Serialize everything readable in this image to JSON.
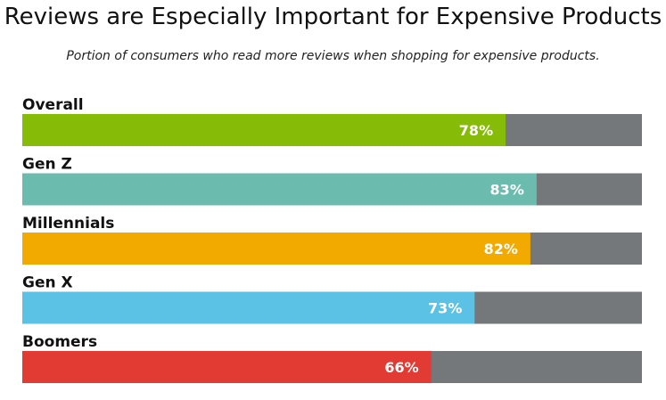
{
  "chart_data": {
    "type": "bar",
    "orientation": "horizontal",
    "stacked_remainder": true,
    "title": "Reviews are Especially Important for Expensive Products",
    "subtitle": "Portion of consumers who read more reviews when shopping for expensive products.",
    "categories": [
      "Overall",
      "Gen Z",
      "Millennials",
      "Gen X",
      "Boomers"
    ],
    "values": [
      78,
      83,
      82,
      73,
      66
    ],
    "value_labels": [
      "78%",
      "83%",
      "82%",
      "73%",
      "66%"
    ],
    "xlim": [
      0,
      100
    ],
    "grid": false,
    "legend": "none",
    "colors": [
      "#86BC07",
      "#6CBBAF",
      "#F2A900",
      "#5BC2E6",
      "#E13B33"
    ],
    "remainder_color": "#75787B"
  }
}
